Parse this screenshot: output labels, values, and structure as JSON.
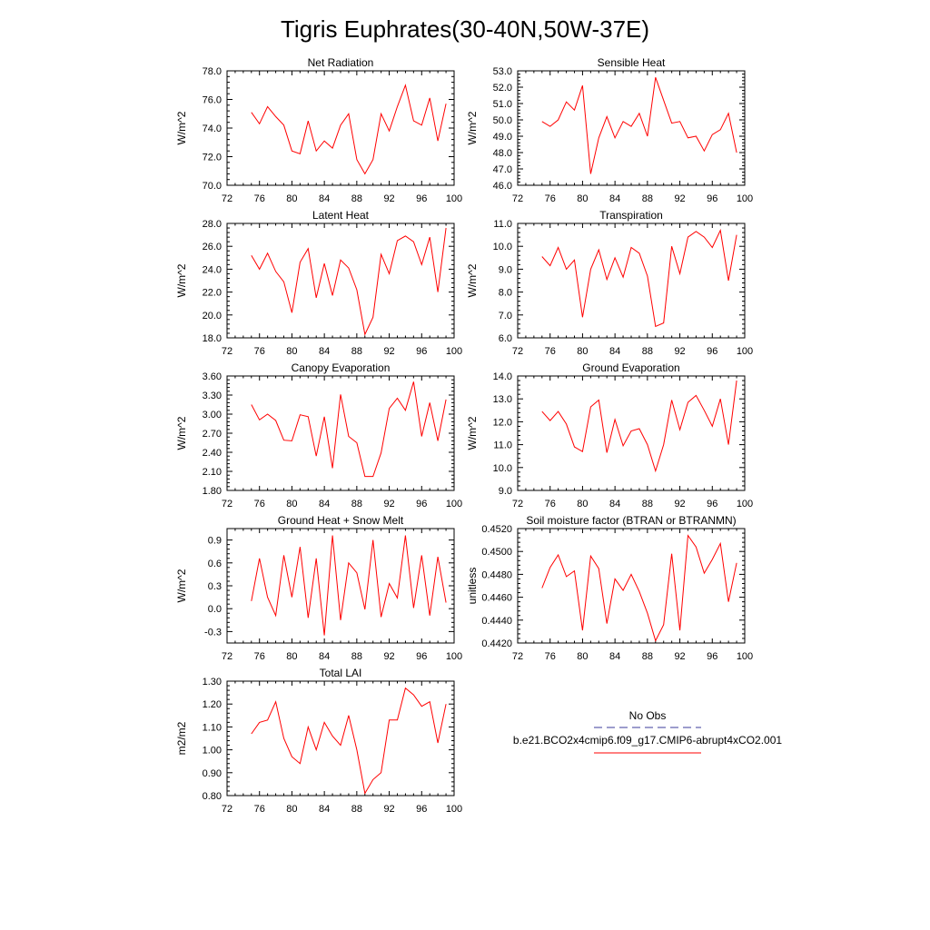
{
  "title": "Tigris Euphrates(30-40N,50W-37E)",
  "line_color": "#ff0000",
  "obs_color": "#3b3b9b",
  "legend": {
    "obs_label": "No Obs",
    "model_label": "b.e21.BCO2x4cmip6.f09_g17.CMIP6-abrupt4xCO2.001"
  },
  "chart_data": [
    {
      "type": "line",
      "title": "Net Radiation",
      "ylabel": "W/m^2",
      "xlim": [
        72,
        100
      ],
      "ylim": [
        70,
        78
      ],
      "xticks": [
        "72",
        "76",
        "80",
        "84",
        "88",
        "92",
        "96",
        "100"
      ],
      "yticks": [
        "70.0",
        "72.0",
        "74.0",
        "76.0",
        "78.0"
      ],
      "x": [
        75,
        76,
        77,
        78,
        79,
        80,
        81,
        82,
        83,
        84,
        85,
        86,
        87,
        88,
        89,
        90,
        91,
        92,
        93,
        94,
        95,
        96,
        97,
        98,
        99
      ],
      "values": [
        75.1,
        74.3,
        75.5,
        74.8,
        74.2,
        72.4,
        72.2,
        74.5,
        72.4,
        73.1,
        72.6,
        74.2,
        75.0,
        71.8,
        70.8,
        71.8,
        75.0,
        73.8,
        75.5,
        77.0,
        74.5,
        74.2,
        76.1,
        73.1,
        75.7
      ]
    },
    {
      "type": "line",
      "title": "Sensible Heat",
      "ylabel": "W/m^2",
      "xlim": [
        72,
        100
      ],
      "ylim": [
        46,
        53
      ],
      "xticks": [
        "72",
        "76",
        "80",
        "84",
        "88",
        "92",
        "96",
        "100"
      ],
      "yticks": [
        "46.0",
        "47.0",
        "48.0",
        "49.0",
        "50.0",
        "51.0",
        "52.0",
        "53.0"
      ],
      "x": [
        75,
        76,
        77,
        78,
        79,
        80,
        81,
        82,
        83,
        84,
        85,
        86,
        87,
        88,
        89,
        90,
        91,
        92,
        93,
        94,
        95,
        96,
        97,
        98,
        99
      ],
      "values": [
        49.9,
        49.6,
        50.0,
        51.1,
        50.6,
        52.1,
        46.7,
        48.9,
        50.2,
        48.9,
        49.9,
        49.6,
        50.4,
        49.0,
        52.6,
        51.2,
        49.8,
        49.9,
        48.9,
        49.0,
        48.1,
        49.1,
        49.4,
        50.4,
        48.0
      ]
    },
    {
      "type": "line",
      "title": "Latent Heat",
      "ylabel": "W/m^2",
      "xlim": [
        72,
        100
      ],
      "ylim": [
        18,
        28
      ],
      "xticks": [
        "72",
        "76",
        "80",
        "84",
        "88",
        "92",
        "96",
        "100"
      ],
      "yticks": [
        "18.0",
        "20.0",
        "22.0",
        "24.0",
        "26.0",
        "28.0"
      ],
      "x": [
        75,
        76,
        77,
        78,
        79,
        80,
        81,
        82,
        83,
        84,
        85,
        86,
        87,
        88,
        89,
        90,
        91,
        92,
        93,
        94,
        95,
        96,
        97,
        98,
        99
      ],
      "values": [
        25.2,
        24.0,
        25.4,
        23.8,
        22.9,
        20.2,
        24.6,
        25.8,
        21.5,
        24.5,
        21.7,
        24.8,
        24.1,
        22.2,
        18.3,
        19.8,
        25.3,
        23.6,
        26.5,
        26.9,
        26.4,
        24.4,
        26.8,
        22.0,
        27.6
      ]
    },
    {
      "type": "line",
      "title": "Transpiration",
      "ylabel": "W/m^2",
      "xlim": [
        72,
        100
      ],
      "ylim": [
        6,
        11
      ],
      "xticks": [
        "72",
        "76",
        "80",
        "84",
        "88",
        "92",
        "96",
        "100"
      ],
      "yticks": [
        "6.0",
        "7.0",
        "8.0",
        "9.0",
        "10.0",
        "11.0"
      ],
      "x": [
        75,
        76,
        77,
        78,
        79,
        80,
        81,
        82,
        83,
        84,
        85,
        86,
        87,
        88,
        89,
        90,
        91,
        92,
        93,
        94,
        95,
        96,
        97,
        98,
        99
      ],
      "values": [
        9.55,
        9.15,
        9.95,
        9.0,
        9.4,
        6.9,
        9.0,
        9.85,
        8.55,
        9.5,
        8.65,
        9.95,
        9.7,
        8.7,
        6.5,
        6.65,
        10.0,
        8.8,
        10.4,
        10.65,
        10.4,
        9.95,
        10.7,
        8.5,
        10.5
      ]
    },
    {
      "type": "line",
      "title": "Canopy Evaporation",
      "ylabel": "W/m^2",
      "xlim": [
        72,
        100
      ],
      "ylim": [
        1.8,
        3.6
      ],
      "xticks": [
        "72",
        "76",
        "80",
        "84",
        "88",
        "92",
        "96",
        "100"
      ],
      "yticks": [
        "1.80",
        "2.10",
        "2.40",
        "2.70",
        "3.00",
        "3.30",
        "3.60"
      ],
      "x": [
        75,
        76,
        77,
        78,
        79,
        80,
        81,
        82,
        83,
        84,
        85,
        86,
        87,
        88,
        89,
        90,
        91,
        92,
        93,
        94,
        95,
        96,
        97,
        98,
        99
      ],
      "values": [
        3.15,
        2.91,
        3.0,
        2.9,
        2.59,
        2.58,
        2.99,
        2.96,
        2.34,
        2.96,
        2.15,
        3.31,
        2.65,
        2.55,
        2.02,
        2.02,
        2.39,
        3.09,
        3.25,
        3.06,
        3.51,
        2.65,
        3.18,
        2.58,
        3.23
      ]
    },
    {
      "type": "line",
      "title": "Ground Evaporation",
      "ylabel": "W/m^2",
      "xlim": [
        72,
        100
      ],
      "ylim": [
        9,
        14
      ],
      "xticks": [
        "72",
        "76",
        "80",
        "84",
        "88",
        "92",
        "96",
        "100"
      ],
      "yticks": [
        "9.0",
        "10.0",
        "11.0",
        "12.0",
        "13.0",
        "14.0"
      ],
      "x": [
        75,
        76,
        77,
        78,
        79,
        80,
        81,
        82,
        83,
        84,
        85,
        86,
        87,
        88,
        89,
        90,
        91,
        92,
        93,
        94,
        95,
        96,
        97,
        98,
        99
      ],
      "values": [
        12.45,
        12.05,
        12.45,
        11.9,
        10.9,
        10.7,
        12.65,
        12.95,
        10.65,
        12.1,
        10.95,
        11.6,
        11.7,
        11.0,
        9.85,
        11.0,
        12.95,
        11.65,
        12.85,
        13.15,
        12.5,
        11.8,
        13.0,
        11.0,
        13.8
      ]
    },
    {
      "type": "line",
      "title": "Ground Heat + Snow Melt",
      "ylabel": "W/m^2",
      "xlim": [
        72,
        100
      ],
      "ylim": [
        -0.45,
        1.05
      ],
      "xticks": [
        "72",
        "76",
        "80",
        "84",
        "88",
        "92",
        "96",
        "100"
      ],
      "yticks": [
        "-0.3",
        "0.0",
        "0.3",
        "0.6",
        "0.9"
      ],
      "ytick_values": [
        -0.3,
        0.0,
        0.3,
        0.6,
        0.9
      ],
      "x": [
        75,
        76,
        77,
        78,
        79,
        80,
        81,
        82,
        83,
        84,
        85,
        86,
        87,
        88,
        89,
        90,
        91,
        92,
        93,
        94,
        95,
        96,
        97,
        98,
        99
      ],
      "values": [
        0.1,
        0.66,
        0.15,
        -0.09,
        0.7,
        0.15,
        0.81,
        -0.12,
        0.66,
        -0.35,
        0.96,
        -0.15,
        0.6,
        0.47,
        -0.01,
        0.9,
        -0.11,
        0.33,
        0.14,
        0.96,
        0.01,
        0.7,
        -0.09,
        0.68,
        0.08
      ]
    },
    {
      "type": "line",
      "title": "Soil moisture factor (BTRAN or BTRANMN)",
      "ylabel": "unitless",
      "xlim": [
        72,
        100
      ],
      "ylim": [
        0.442,
        0.452
      ],
      "xticks": [
        "72",
        "76",
        "80",
        "84",
        "88",
        "92",
        "96",
        "100"
      ],
      "yticks": [
        "0.4420",
        "0.4440",
        "0.4460",
        "0.4480",
        "0.4500",
        "0.4520"
      ],
      "x": [
        75,
        76,
        77,
        78,
        79,
        80,
        81,
        82,
        83,
        84,
        85,
        86,
        87,
        88,
        89,
        90,
        91,
        92,
        93,
        94,
        95,
        96,
        97,
        98,
        99
      ],
      "values": [
        0.4468,
        0.4486,
        0.4497,
        0.4478,
        0.4483,
        0.4431,
        0.4496,
        0.4485,
        0.4437,
        0.4476,
        0.4466,
        0.448,
        0.4465,
        0.4446,
        0.4422,
        0.4436,
        0.4498,
        0.4431,
        0.4514,
        0.4504,
        0.4481,
        0.4493,
        0.4507,
        0.4456,
        0.449
      ]
    },
    {
      "type": "line",
      "title": "Total LAI",
      "ylabel": "m2/m2",
      "xlim": [
        72,
        100
      ],
      "ylim": [
        0.8,
        1.3
      ],
      "xticks": [
        "72",
        "76",
        "80",
        "84",
        "88",
        "92",
        "96",
        "100"
      ],
      "yticks": [
        "0.80",
        "0.90",
        "1.00",
        "1.10",
        "1.20",
        "1.30"
      ],
      "x": [
        75,
        76,
        77,
        78,
        79,
        80,
        81,
        82,
        83,
        84,
        85,
        86,
        87,
        88,
        89,
        90,
        91,
        92,
        93,
        94,
        95,
        96,
        97,
        98,
        99
      ],
      "values": [
        1.07,
        1.12,
        1.13,
        1.21,
        1.05,
        0.97,
        0.94,
        1.1,
        1.0,
        1.12,
        1.06,
        1.02,
        1.15,
        1.0,
        0.81,
        0.87,
        0.9,
        1.13,
        1.13,
        1.27,
        1.24,
        1.19,
        1.21,
        1.03,
        1.2
      ]
    }
  ]
}
